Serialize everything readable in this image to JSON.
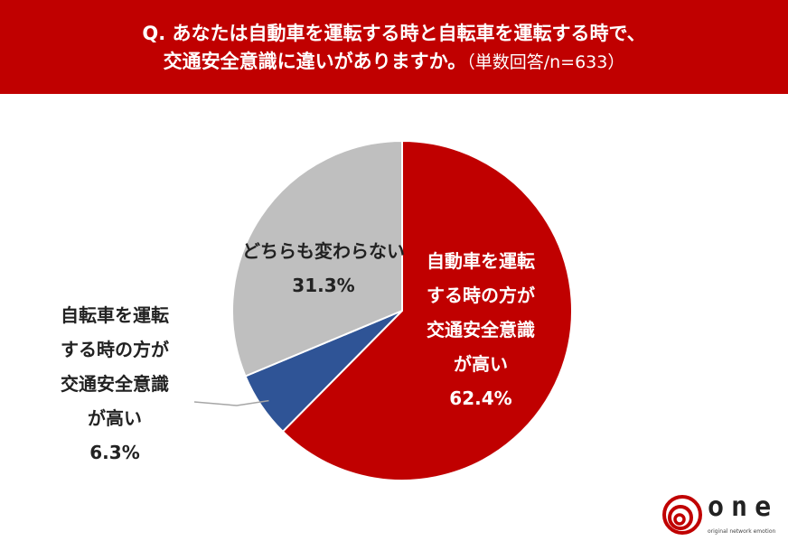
{
  "header": {
    "line1": "Q. あなたは自動車を運転する時と自転車を運転する時で、",
    "line2": "交通安全意識に違いがありますか。",
    "note": "（単数回答/n=633）"
  },
  "chart_data": {
    "type": "pie",
    "slices": [
      {
        "label_lines": [
          "自動車を運転",
          "する時の方が",
          "交通安全意識",
          "が高い"
        ],
        "value": 62.4,
        "value_text": "62.4%",
        "color": "#c00000"
      },
      {
        "label_lines": [
          "自転車を運転",
          "する時の方が",
          "交通安全意識",
          "が高い"
        ],
        "value": 6.3,
        "value_text": "6.3%",
        "color": "#2f5496"
      },
      {
        "label_lines": [
          "どちらも変わらない"
        ],
        "value": 31.3,
        "value_text": "31.3%",
        "color": "#bfbfbf"
      }
    ],
    "start": "12 o'clock",
    "direction": "clockwise"
  },
  "logo": {
    "word": "one",
    "tagline": "original network emotion",
    "color": "#c00000"
  }
}
